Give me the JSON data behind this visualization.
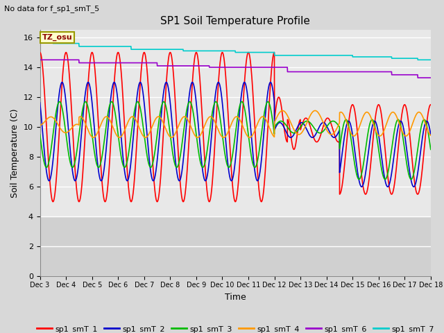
{
  "title": "SP1 Soil Temperature Profile",
  "xlabel": "Time",
  "ylabel": "Soil Temperature (C)",
  "no_data_text": "No data for f_sp1_smT_5",
  "tz_label": "TZ_osu",
  "ylim": [
    0,
    16.5
  ],
  "yticks": [
    0,
    2,
    4,
    6,
    8,
    10,
    12,
    14,
    16
  ],
  "xlim_start": 0,
  "xlim_end": 15,
  "x_tick_labels": [
    "Dec 3",
    "Dec 4",
    "Dec 5",
    "Dec 6",
    "Dec 7",
    "Dec 8",
    "Dec 9",
    "Dec 10",
    "Dec 11",
    "Dec 12",
    "Dec 13",
    "Dec 14",
    "Dec 15",
    "Dec 16",
    "Dec 17",
    "Dec 18"
  ],
  "colors": {
    "sp1_smT_1": "#ff0000",
    "sp1_smT_2": "#0000cc",
    "sp1_smT_3": "#00bb00",
    "sp1_smT_4": "#ff9900",
    "sp1_smT_6": "#9900cc",
    "sp1_smT_7": "#00cccc"
  },
  "background_color": "#d8d8d8",
  "plot_bg_upper": "#e8e8e8",
  "plot_bg_lower": "#d0d0d0",
  "grid_color": "#ffffff",
  "lower_band_threshold": 4.0,
  "legend_labels": [
    "sp1_smT_1",
    "sp1_smT_2",
    "sp1_smT_3",
    "sp1_smT_4",
    "sp1_smT_6",
    "sp1_smT_7"
  ]
}
